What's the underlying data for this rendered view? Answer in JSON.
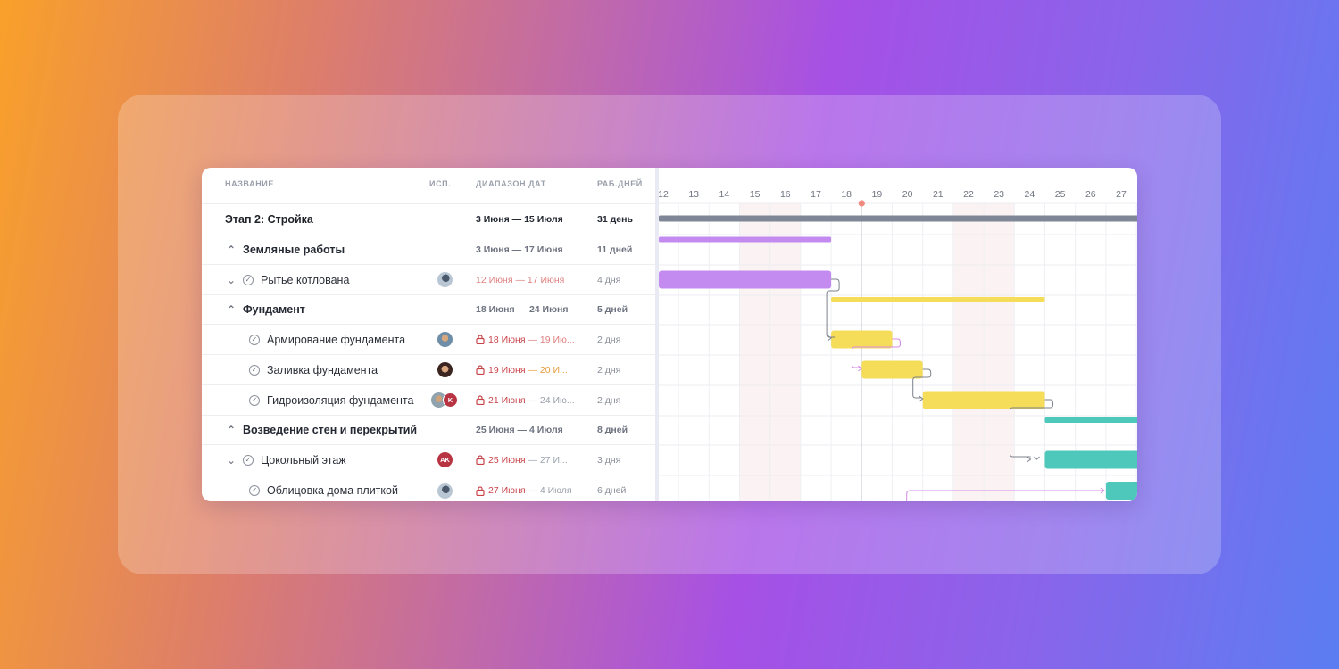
{
  "columns": {
    "name": "НАЗВАНИЕ",
    "assignee": "ИСП.",
    "range": "ДИАПАЗОН ДАТ",
    "workdays": "РАБ.ДНЕЙ"
  },
  "rows": [
    {
      "name": "Этап 2: Стройка",
      "start": "3 Июня",
      "end": "15 Июля",
      "days": "31 день"
    },
    {
      "name": "Земляные работы",
      "start": "3 Июня",
      "end": "17 Июня",
      "days": "11 дней"
    },
    {
      "name": "Рытье котлована",
      "start": "12 Июня",
      "end": "17 Июня",
      "days": "4 дня"
    },
    {
      "name": "Фундамент",
      "start": "18 Июня",
      "end": "24 Июня",
      "days": "5 дней"
    },
    {
      "name": "Армирование фундамента",
      "start": "18 Июня",
      "end": "19 Ию...",
      "days": "2 дня"
    },
    {
      "name": "Заливка фундамента",
      "start": "19 Июня",
      "end": "20 И...",
      "days": "2 дня"
    },
    {
      "name": "Гидроизоляция фундамента",
      "start": "21 Июня",
      "end": "24 Ию...",
      "days": "2 дня"
    },
    {
      "name": "Возведение стен и перекрытий",
      "start": "25 Июня",
      "end": "4 Июля",
      "days": "8 дней"
    },
    {
      "name": "Цокольный этаж",
      "start": "25 Июня",
      "end": "27 И...",
      "days": "3 дня"
    },
    {
      "name": "Облицовка дома плиткой",
      "start": "27 Июня",
      "end": "4 Июля",
      "days": "6 дней"
    }
  ],
  "date_separator": "—",
  "avatars": {
    "initials_ak": "AK",
    "initial_k": "K"
  },
  "timeline": {
    "days": [
      "12",
      "13",
      "14",
      "15",
      "16",
      "17",
      "18",
      "19",
      "20",
      "21",
      "22",
      "23",
      "24",
      "25",
      "26",
      "27"
    ],
    "today": "18.5"
  },
  "gantt_bars": [
    {
      "kind": "summary",
      "row": 0,
      "start": 11.8,
      "end": 27.6,
      "color": "#7f8796"
    },
    {
      "kind": "summary",
      "row": 1,
      "start": 11.8,
      "end": 17.5,
      "color": "#c38bf0"
    },
    {
      "kind": "task",
      "row": 2,
      "start": 11.8,
      "end": 17.5,
      "color": "#c38bf0"
    },
    {
      "kind": "summary",
      "row": 3,
      "start": 17.5,
      "end": 24.5,
      "color": "#f5dd5a"
    },
    {
      "kind": "task",
      "row": 4,
      "start": 17.5,
      "end": 19.5,
      "color": "#f5dd5a"
    },
    {
      "kind": "task",
      "row": 5,
      "start": 18.5,
      "end": 20.5,
      "color": "#f5dd5a"
    },
    {
      "kind": "task",
      "row": 6,
      "start": 20.5,
      "end": 24.5,
      "color": "#f5dd5a"
    },
    {
      "kind": "summary",
      "row": 7,
      "start": 24.5,
      "end": 27.6,
      "color": "#4ec8bb"
    },
    {
      "kind": "task",
      "row": 8,
      "start": 24.5,
      "end": 27.6,
      "color": "#4ec8bb"
    },
    {
      "kind": "task",
      "row": 9,
      "start": 26.5,
      "end": 27.6,
      "color": "#4ec8bb"
    }
  ],
  "weekend_days": [
    "15",
    "16",
    "22",
    "23"
  ],
  "colors": {
    "accent_purple": "#c38bf0",
    "accent_yellow": "#f5dd5a",
    "accent_teal": "#4ec8bb",
    "today_marker": "#f08a7e",
    "overdue_red": "#c9444a"
  }
}
